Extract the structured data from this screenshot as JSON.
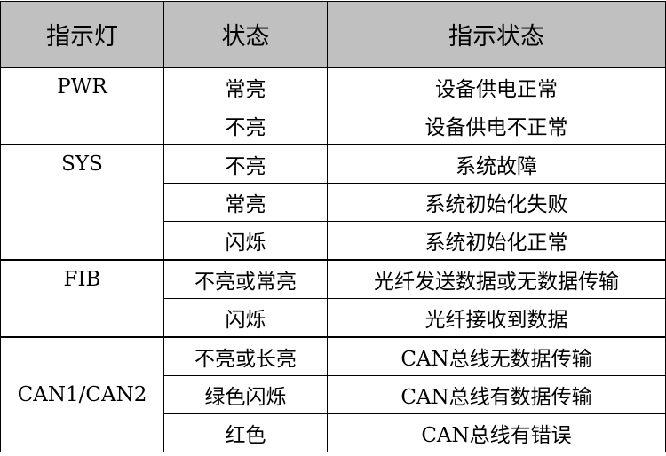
{
  "headers": [
    "指示灯",
    "状态",
    "指示状态"
  ],
  "groups": [
    {
      "indicator": "PWR",
      "rows": [
        {
          "state": "常亮",
          "meaning": "设备供电正常"
        },
        {
          "state": "不亮",
          "meaning": "设备供电不正常"
        }
      ]
    },
    {
      "indicator": "SYS",
      "rows": [
        {
          "state": "不亮",
          "meaning": "系统故障"
        },
        {
          "state": "常亮",
          "meaning": "系统初始化失败"
        },
        {
          "state": "闪烁",
          "meaning": "系统初始化正常"
        }
      ]
    },
    {
      "indicator": "FIB",
      "rows": [
        {
          "state": "不亮或常亮",
          "meaning": "光纤发送数据或无数据传输"
        },
        {
          "state": "闪烁",
          "meaning": "光纤接收到数据"
        }
      ]
    },
    {
      "indicator": "CAN1/CAN2",
      "rows": [
        {
          "state": "不亮或长亮",
          "meaning": "CAN总线无数据传输"
        },
        {
          "state": "绿色闪烁",
          "meaning": "CAN总线有数据传输"
        },
        {
          "state": "红色",
          "meaning": "CAN总线有错误"
        }
      ]
    }
  ]
}
